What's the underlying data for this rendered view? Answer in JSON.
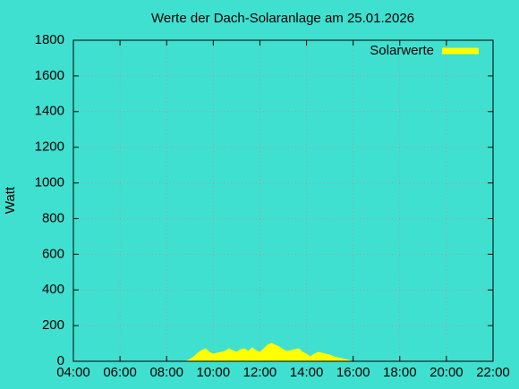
{
  "chart_data": {
    "type": "area",
    "title": "Werte der Dach-Solaranlage am 25.01.2026",
    "y_label": "Watt",
    "xlim": [
      "04:00",
      "22:00"
    ],
    "xticks": [
      "04:00",
      "06:00",
      "08:00",
      "10:00",
      "12:00",
      "14:00",
      "16:00",
      "18:00",
      "20:00",
      "22:00"
    ],
    "ylim": [
      0,
      1800
    ],
    "yticks": [
      0,
      200,
      400,
      600,
      800,
      1000,
      1200,
      1400,
      1600,
      1800
    ],
    "grid": true,
    "legend": "top-right",
    "x": [
      "08:50",
      "09:00",
      "09:10",
      "09:20",
      "09:30",
      "09:40",
      "09:50",
      "10:00",
      "10:10",
      "10:20",
      "10:30",
      "10:40",
      "10:50",
      "11:00",
      "11:10",
      "11:20",
      "11:30",
      "11:40",
      "11:50",
      "12:00",
      "12:10",
      "12:20",
      "12:30",
      "12:40",
      "12:50",
      "13:00",
      "13:10",
      "13:20",
      "13:30",
      "13:40",
      "13:50",
      "14:00",
      "14:10",
      "14:20",
      "14:30",
      "14:40",
      "14:50",
      "15:00",
      "15:10",
      "15:20",
      "15:30",
      "15:40",
      "15:50",
      "15:55"
    ],
    "series": [
      {
        "name": "Solarwerte",
        "color": "#ffff00",
        "values": [
          0,
          10,
          25,
          45,
          60,
          70,
          50,
          40,
          45,
          50,
          55,
          70,
          60,
          50,
          65,
          70,
          55,
          75,
          60,
          50,
          70,
          90,
          100,
          90,
          80,
          65,
          55,
          60,
          65,
          70,
          50,
          40,
          25,
          40,
          50,
          45,
          40,
          35,
          25,
          20,
          15,
          10,
          5,
          0
        ]
      }
    ]
  }
}
